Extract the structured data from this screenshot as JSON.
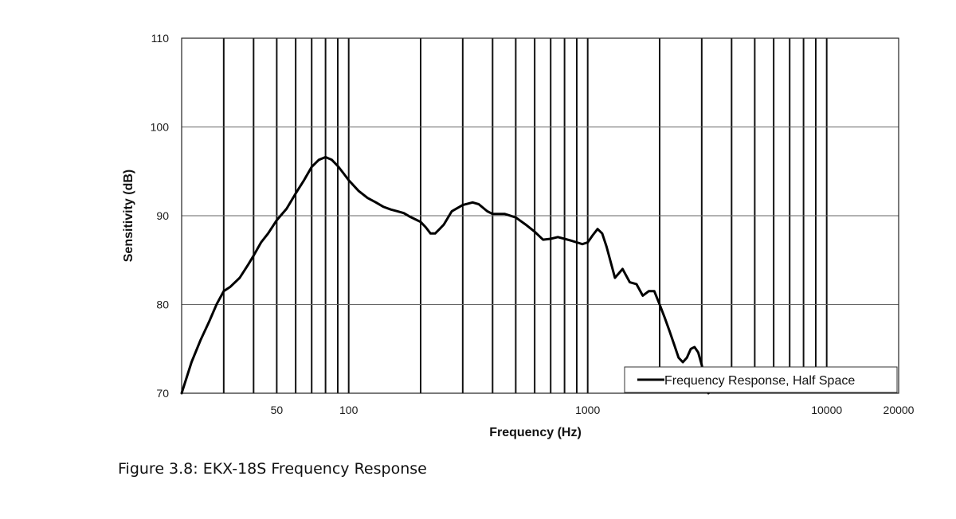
{
  "chart_data": {
    "type": "line",
    "xlabel": "Frequency (Hz)",
    "ylabel": "Sensitivity (dB)",
    "x_scale": "log",
    "xlim": [
      20,
      20000
    ],
    "ylim": [
      70,
      110
    ],
    "y_ticks": [
      70,
      80,
      90,
      100,
      110
    ],
    "x_tick_labels": [
      {
        "value": 50,
        "label": "50"
      },
      {
        "value": 100,
        "label": "100"
      },
      {
        "value": 1000,
        "label": "1000"
      },
      {
        "value": 10000,
        "label": "10000"
      },
      {
        "value": 20000,
        "label": "20000"
      }
    ],
    "x_gridlines": [
      30,
      40,
      50,
      60,
      70,
      80,
      90,
      100,
      200,
      300,
      400,
      500,
      600,
      700,
      800,
      900,
      1000,
      2000,
      3000,
      4000,
      5000,
      6000,
      7000,
      8000,
      9000,
      10000
    ],
    "y_gridlines": [
      80,
      90,
      100
    ],
    "grid": true,
    "legend_position": "bottom-right",
    "series": [
      {
        "name": "Frequency Response, Half Space",
        "color": "#000000",
        "x": [
          20,
          22,
          24,
          26,
          28,
          30,
          32,
          35,
          38,
          40,
          43,
          46,
          50,
          55,
          60,
          65,
          70,
          75,
          80,
          85,
          90,
          95,
          100,
          110,
          120,
          130,
          140,
          150,
          160,
          170,
          180,
          190,
          200,
          210,
          220,
          230,
          240,
          250,
          270,
          300,
          330,
          350,
          380,
          400,
          450,
          500,
          550,
          600,
          650,
          700,
          750,
          800,
          850,
          900,
          950,
          1000,
          1050,
          1100,
          1150,
          1200,
          1300,
          1400,
          1500,
          1600,
          1700,
          1800,
          1900,
          2000,
          2100,
          2200,
          2300,
          2400,
          2500,
          2600,
          2700,
          2800,
          2900,
          3000,
          3100,
          3200
        ],
        "y": [
          70,
          73.5,
          76,
          78,
          80,
          81.5,
          82,
          83,
          84.5,
          85.5,
          87,
          88,
          89.5,
          90.8,
          92.5,
          94,
          95.5,
          96.3,
          96.6,
          96.3,
          95.6,
          94.8,
          94,
          92.8,
          92,
          91.5,
          91,
          90.7,
          90.5,
          90.3,
          89.9,
          89.6,
          89.3,
          88.7,
          88,
          88,
          88.5,
          89,
          90.5,
          91.2,
          91.5,
          91.3,
          90.5,
          90.2,
          90.2,
          89.8,
          89,
          88.2,
          87.3,
          87.4,
          87.6,
          87.4,
          87.2,
          87,
          86.8,
          87,
          87.8,
          88.5,
          88,
          86.5,
          83,
          84,
          82.5,
          82.3,
          81,
          81.5,
          81.5,
          80,
          78.5,
          77,
          75.5,
          74,
          73.5,
          74,
          75,
          75.2,
          74.6,
          73.2,
          71.5,
          70
        ]
      }
    ]
  },
  "figure": {
    "caption": "Figure 3.8: EKX-18S Frequency Response"
  }
}
